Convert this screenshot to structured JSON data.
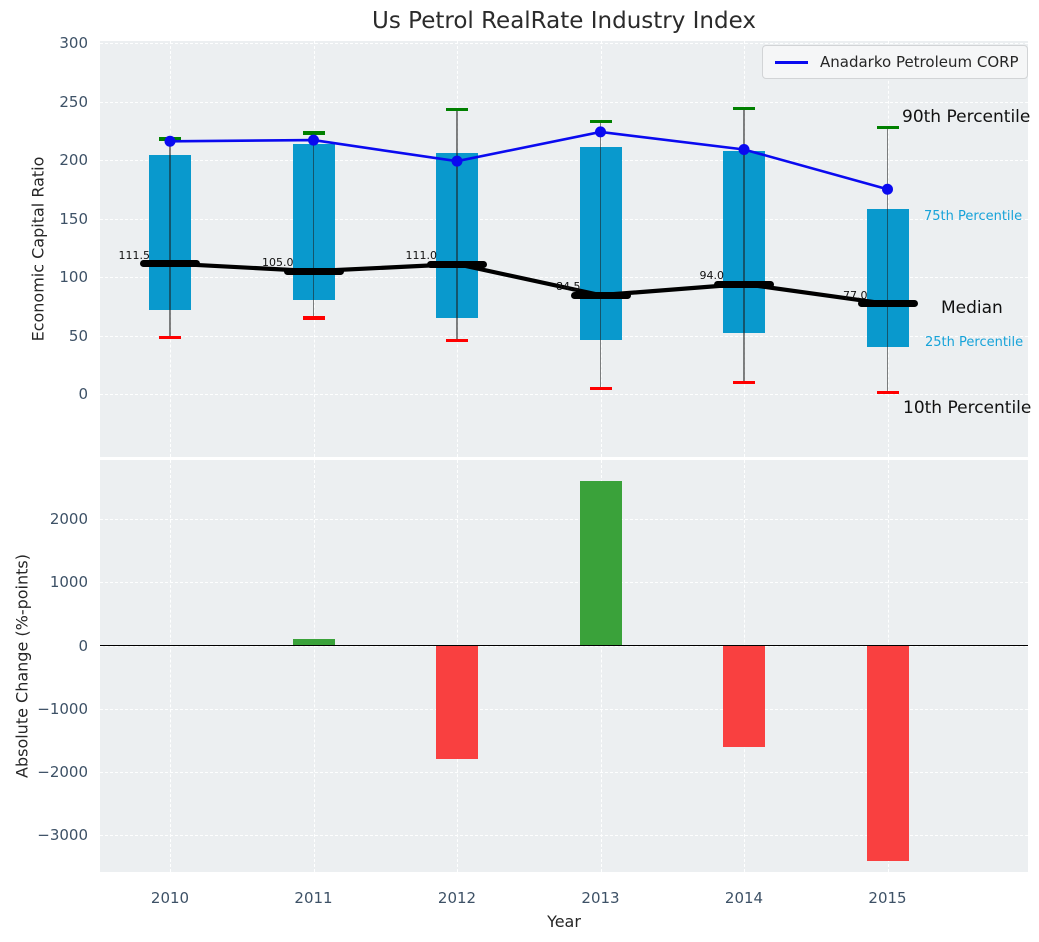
{
  "title": "Us Petrol RealRate Industry Index",
  "legend": {
    "label": "Anadarko Petroleum CORP"
  },
  "top_axis": {
    "ylabel": "Economic Capital Ratio",
    "ytick_labels": [
      "300",
      "250",
      "200",
      "150",
      "100",
      "50",
      "0"
    ],
    "ytick_values": [
      300,
      250,
      200,
      150,
      100,
      50,
      0
    ]
  },
  "bottom_axis": {
    "ylabel": "Absolute Change (%-points)",
    "xlabel": "Year",
    "ytick_labels": [
      "2000",
      "1000",
      "0",
      "−1000",
      "−2000",
      "−3000"
    ],
    "ytick_values": [
      2000,
      1000,
      0,
      -1000,
      -2000,
      -3000
    ]
  },
  "annotations": {
    "p90": "90th Percentile",
    "p75": "75th Percentile",
    "median": "Median",
    "p25": "25th Percentile",
    "p10": "10th Percentile"
  },
  "chart_data": [
    {
      "type": "box-percentile",
      "title": "Us Petrol RealRate Industry Index",
      "ylabel": "Economic Capital Ratio",
      "ylim": [
        -55,
        302
      ],
      "grid": true,
      "legend_position": "upper right",
      "categories": [
        "2010",
        "2011",
        "2012",
        "2013",
        "2014",
        "2015"
      ],
      "series": [
        {
          "name": "90th Percentile",
          "values": [
            218,
            223,
            243,
            233,
            244,
            228
          ]
        },
        {
          "name": "75th Percentile",
          "values": [
            204,
            214,
            206,
            211,
            208,
            158
          ]
        },
        {
          "name": "Median",
          "values": [
            111.5,
            105.0,
            111.0,
            84.5,
            94.0,
            77.0
          ]
        },
        {
          "name": "25th Percentile",
          "values": [
            72,
            80,
            65,
            46,
            52,
            40
          ]
        },
        {
          "name": "10th Percentile",
          "values": [
            48,
            65,
            46,
            5,
            10,
            1
          ]
        },
        {
          "name": "Anadarko Petroleum CORP",
          "values": [
            216,
            217,
            199,
            224,
            209,
            175
          ]
        }
      ],
      "median_labels": [
        "111.5",
        "105.0",
        "111.0",
        "84.5",
        "94.0",
        "77.0"
      ]
    },
    {
      "type": "bar",
      "ylabel": "Absolute Change (%-points)",
      "xlabel": "Year",
      "ylim": [
        -3650,
        2930
      ],
      "grid": true,
      "categories": [
        "2010",
        "2011",
        "2012",
        "2013",
        "2014",
        "2015"
      ],
      "values": [
        0,
        100,
        -1800,
        2600,
        -1600,
        -3400
      ]
    }
  ],
  "colors": {
    "box": "#0999cd",
    "company_line": "#0a0af0",
    "median_line": "#000000",
    "p90_cap": "#008000",
    "p10_cap": "#ff0000",
    "bar_positive": "#3aa23a",
    "bar_negative": "#f94040",
    "axes_background": "#eceff1",
    "tick_text": "#3d5166",
    "percentile_label_cyan": "#17a3d9"
  }
}
